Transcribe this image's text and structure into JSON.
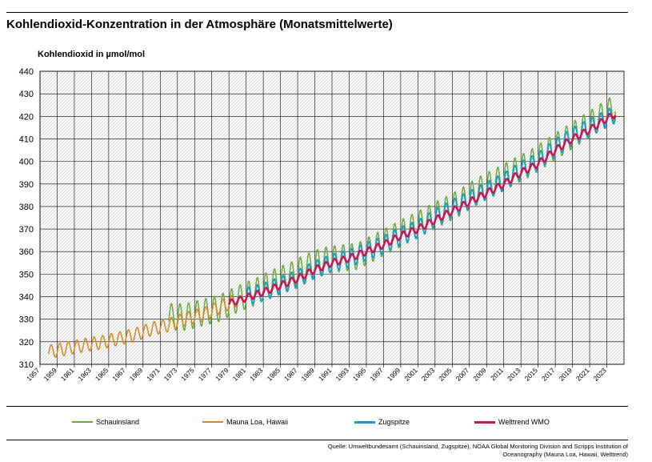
{
  "header": {
    "title": "Kohlendioxid-Konzentration in der Atmosphäre (Monatsmittelwerte)",
    "ylabel": "Kohlendioxid in µmol/mol"
  },
  "legend": [
    {
      "label": "Schauinsland",
      "color": "#6aaa3a"
    },
    {
      "label": "Mauna Loa, Hawaii",
      "color": "#d4891e"
    },
    {
      "label": "Zugspitze",
      "color": "#1b9bc9"
    },
    {
      "label": "Welttrend WMO",
      "color": "#c8184f"
    }
  ],
  "source": "Quelle: Umweltbundesamt (Schauinsland, Zugspitze), NOAA Global Monitoring Division and Scripps Institution of Oceanography  (Mauna Loa, Hawaii, Welttrend)",
  "chart_data": {
    "type": "line",
    "title": "Kohlendioxid-Konzentration in der Atmosphäre (Monatsmittelwerte)",
    "xlabel": "",
    "ylabel": "Kohlendioxid in µmol/mol",
    "ylim": [
      310,
      440
    ],
    "yticks": [
      310,
      320,
      330,
      340,
      350,
      360,
      370,
      380,
      390,
      400,
      410,
      420,
      430,
      440
    ],
    "xlim": [
      1957,
      2025
    ],
    "xticks": [
      "1957",
      "1959",
      "1961",
      "1963",
      "1965",
      "1967",
      "1969",
      "1971",
      "1973",
      "1975",
      "1977",
      "1979",
      "1981",
      "1983",
      "1985",
      "1987",
      "1989",
      "1991",
      "1993",
      "1995",
      "1997",
      "1999",
      "2001",
      "2003",
      "2005",
      "2007",
      "2009",
      "2011",
      "2013",
      "2015",
      "2017",
      "2019",
      "2021",
      "2023"
    ],
    "grid": true,
    "legend_position": "bottom",
    "series": [
      {
        "name": "Schauinsland",
        "color": "#6aaa3a",
        "amplitude": 6,
        "x": [
          1972,
          1974,
          1976,
          1978,
          1980,
          1982,
          1984,
          1986,
          1988,
          1990,
          1992,
          1994,
          1996,
          1998,
          2000,
          2002,
          2004,
          2006,
          2008,
          2010,
          2012,
          2014,
          2016,
          2018,
          2020,
          2022,
          2024
        ],
        "values": [
          331,
          331,
          333,
          335,
          339,
          342,
          346,
          349,
          353,
          356,
          357,
          358,
          362,
          366,
          370,
          374,
          378,
          382,
          387,
          391,
          395,
          399,
          404,
          409,
          414,
          419,
          424
        ]
      },
      {
        "name": "Mauna Loa, Hawaii",
        "color": "#d4891e",
        "amplitude": 3,
        "x": [
          1958,
          1960,
          1962,
          1964,
          1966,
          1968,
          1970,
          1972,
          1974,
          1976,
          1978,
          1980
        ],
        "values": [
          315.5,
          316.9,
          318.4,
          319.6,
          321.3,
          323.0,
          325.7,
          327.5,
          330.2,
          332.1,
          335.4,
          338.7
        ]
      },
      {
        "name": "Zugspitze",
        "color": "#1b9bc9",
        "amplitude": 4,
        "x": [
          1981,
          1983,
          1985,
          1987,
          1989,
          1991,
          1993,
          1995,
          1997,
          1999,
          2001,
          2003,
          2005,
          2007,
          2009,
          2011,
          2013,
          2015,
          2017,
          2019,
          2021,
          2023,
          2024
        ],
        "values": [
          340,
          342,
          345,
          348,
          352,
          355,
          357,
          360,
          363,
          367,
          370,
          375,
          379,
          383,
          387,
          391,
          396,
          400,
          406,
          411,
          415,
          419,
          421
        ]
      },
      {
        "name": "Welttrend WMO",
        "color": "#c8184f",
        "amplitude": 1.5,
        "x": [
          1979,
          1981,
          1983,
          1985,
          1987,
          1989,
          1991,
          1993,
          1995,
          1997,
          1999,
          2001,
          2003,
          2005,
          2007,
          2009,
          2011,
          2013,
          2015,
          2017,
          2019,
          2021,
          2023,
          2024
        ],
        "values": [
          337,
          339.5,
          342,
          345,
          348,
          352,
          355,
          357,
          360,
          363,
          367,
          370,
          374,
          378,
          382,
          386,
          390,
          395,
          399,
          405,
          410,
          414,
          419,
          421
        ]
      }
    ]
  }
}
